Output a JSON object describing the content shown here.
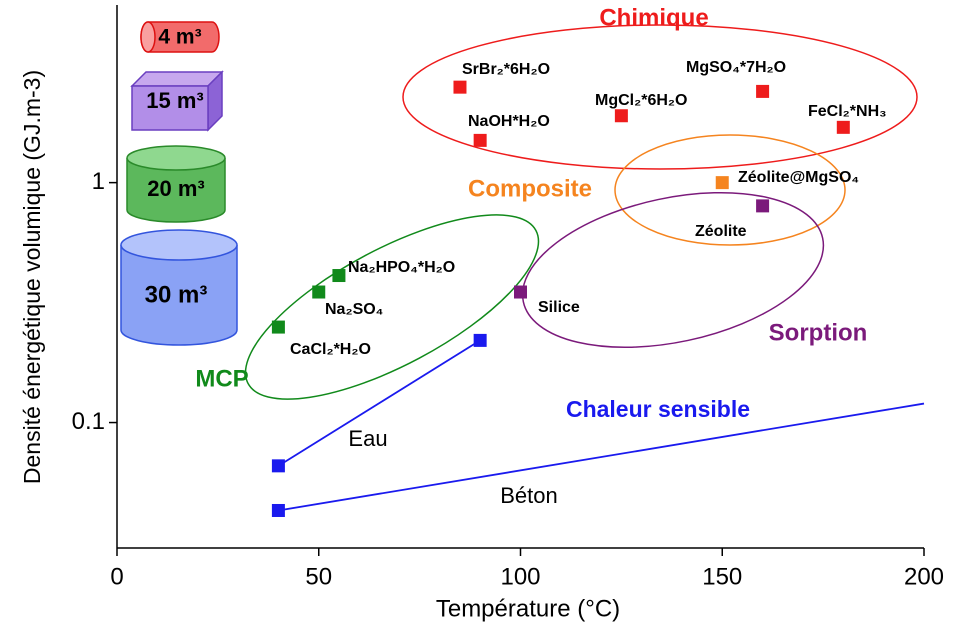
{
  "chart_data": {
    "type": "scatter",
    "x_label": "Température (°C)",
    "y_label": "Densité énergétique volumique (GJ.m-3)",
    "xlim": [
      0,
      200
    ],
    "xticks": [
      0,
      50,
      100,
      150,
      200
    ],
    "ylim": [
      0.03,
      5.5
    ],
    "yticks": [
      0.1,
      1
    ],
    "log_y": true,
    "annotation": "Chaleur sensible",
    "volumes": [
      "4 m³",
      "15 m³",
      "20 m³",
      "30 m³"
    ],
    "series": [
      {
        "name": "Chimique",
        "color": "#ee1c1c",
        "x": [
          85,
          90,
          125,
          160,
          180
        ],
        "values": [
          2.5,
          1.5,
          1.9,
          2.4,
          1.7
        ],
        "point_labels": [
          "SrBr₂*6H₂O",
          "NaOH*H₂O",
          "MgCl₂*6H₂O",
          "MgSO₄*7H₂O",
          "FeCl₂*NH₃"
        ]
      },
      {
        "name": "Composite",
        "color": "#f5841f",
        "x": [
          150
        ],
        "values": [
          1.0
        ],
        "point_labels": [
          "Zéolite@MgSO₄"
        ]
      },
      {
        "name": "Sorption",
        "color": "#7b1a7b",
        "x": [
          160,
          100
        ],
        "values": [
          0.8,
          0.35
        ],
        "point_labels": [
          "Zéolite",
          "Silice"
        ]
      },
      {
        "name": "MCP",
        "color": "#118a1b",
        "x": [
          55,
          50,
          40
        ],
        "values": [
          0.41,
          0.35,
          0.25
        ],
        "point_labels": [
          "Na₂HPO₄*H₂O",
          "Na₂SO₄",
          "CaCl₂*H₂O"
        ]
      },
      {
        "name": "Eau",
        "color": "#1a1aee",
        "line": true,
        "x": [
          40,
          90
        ],
        "values": [
          0.066,
          0.22
        ],
        "markers": [
          true,
          true
        ]
      },
      {
        "name": "Béton",
        "color": "#1a1aee",
        "line": true,
        "x": [
          40,
          200
        ],
        "values": [
          0.043,
          0.12
        ],
        "markers": [
          true,
          false
        ]
      }
    ]
  }
}
